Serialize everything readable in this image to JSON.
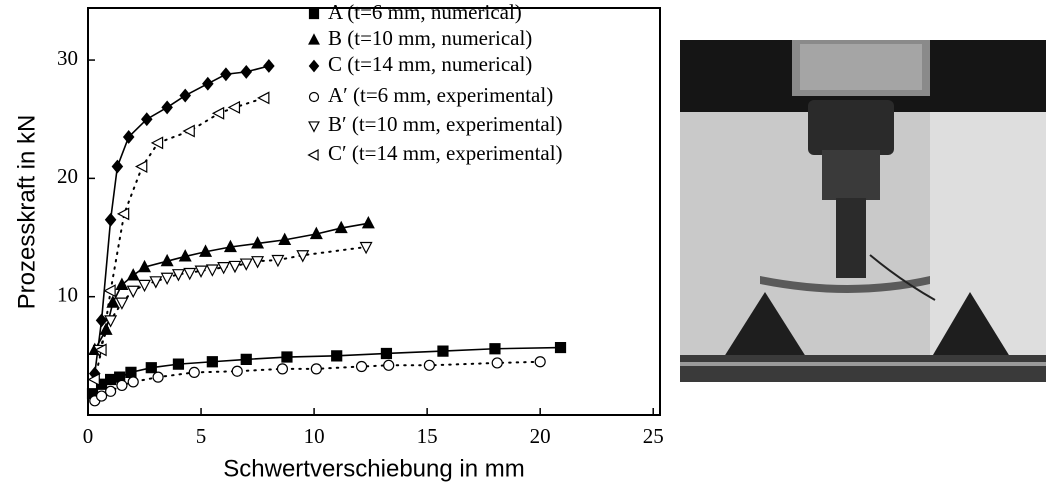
{
  "chart_data": {
    "type": "line",
    "xlabel": "Schwertverschiebung in mm",
    "ylabel": "Prozesskraft in kN",
    "xlim": [
      0,
      25.3
    ],
    "ylim": [
      0,
      34.4
    ],
    "xticks": [
      0,
      5,
      10,
      15,
      20,
      25
    ],
    "yticks": [
      10,
      20,
      30
    ],
    "series": [
      {
        "name": "A (t=6 mm, numerical)",
        "color": "#000000",
        "marker": "square",
        "filled": true,
        "style": "solid",
        "x": [
          0.2,
          0.6,
          1.0,
          1.4,
          1.9,
          2.8,
          4.0,
          5.5,
          7.0,
          8.8,
          11.0,
          13.2,
          15.7,
          18.0,
          20.9
        ],
        "values": [
          1.8,
          2.6,
          3.0,
          3.2,
          3.6,
          4.0,
          4.3,
          4.5,
          4.7,
          4.9,
          5.0,
          5.2,
          5.4,
          5.6,
          5.7
        ]
      },
      {
        "name": "B (t=10 mm, numerical)",
        "color": "#000000",
        "marker": "triangle-up",
        "filled": true,
        "style": "solid",
        "x": [
          0.3,
          0.8,
          1.1,
          1.5,
          2.0,
          2.5,
          3.5,
          4.3,
          5.2,
          6.3,
          7.5,
          8.7,
          10.1,
          11.2,
          12.4
        ],
        "values": [
          5.5,
          7.2,
          9.5,
          11.0,
          11.8,
          12.5,
          13.0,
          13.4,
          13.8,
          14.2,
          14.5,
          14.8,
          15.3,
          15.8,
          16.2
        ]
      },
      {
        "name": "C (t=14 mm, numerical)",
        "color": "#000000",
        "marker": "diamond",
        "filled": true,
        "style": "solid",
        "x": [
          0.3,
          0.6,
          1.0,
          1.3,
          1.8,
          2.6,
          3.5,
          4.3,
          5.3,
          6.1,
          7.0,
          8.0
        ],
        "values": [
          3.5,
          8.0,
          16.5,
          21.0,
          23.5,
          25.0,
          26.0,
          27.0,
          28.0,
          28.8,
          29.0,
          29.5
        ]
      },
      {
        "name": "A′ (t=6 mm, experimental)",
        "color": "#000000",
        "marker": "circle",
        "filled": false,
        "style": "dotted",
        "x": [
          0.3,
          0.6,
          1.0,
          1.5,
          2.0,
          3.1,
          4.7,
          6.6,
          8.6,
          10.1,
          12.1,
          13.3,
          15.1,
          18.1,
          20.0
        ],
        "values": [
          1.2,
          1.6,
          2.0,
          2.5,
          2.8,
          3.2,
          3.6,
          3.7,
          3.9,
          3.9,
          4.1,
          4.2,
          4.2,
          4.4,
          4.5
        ]
      },
      {
        "name": "B′ (t=10 mm, experimental)",
        "color": "#000000",
        "marker": "triangle-down",
        "filled": false,
        "style": "dotted",
        "x": [
          0.5,
          1.0,
          1.5,
          2.0,
          2.5,
          3.0,
          3.5,
          4.0,
          4.5,
          5.0,
          5.5,
          6.0,
          6.5,
          7.0,
          7.5,
          8.4,
          9.5,
          12.3
        ],
        "values": [
          5.5,
          8.0,
          9.5,
          10.5,
          11.0,
          11.3,
          11.6,
          11.9,
          12.0,
          12.2,
          12.3,
          12.5,
          12.6,
          12.8,
          13.0,
          13.1,
          13.5,
          14.2
        ]
      },
      {
        "name": "C′ (t=14 mm, experimental)",
        "color": "#000000",
        "marker": "triangle-left",
        "filled": false,
        "style": "dotted",
        "x": [
          0.3,
          0.6,
          1.0,
          1.6,
          2.4,
          3.1,
          4.5,
          5.8,
          6.5,
          7.8
        ],
        "values": [
          3.0,
          5.5,
          10.5,
          17.0,
          21.0,
          23.0,
          24.0,
          25.5,
          26.0,
          26.8
        ]
      }
    ]
  }
}
